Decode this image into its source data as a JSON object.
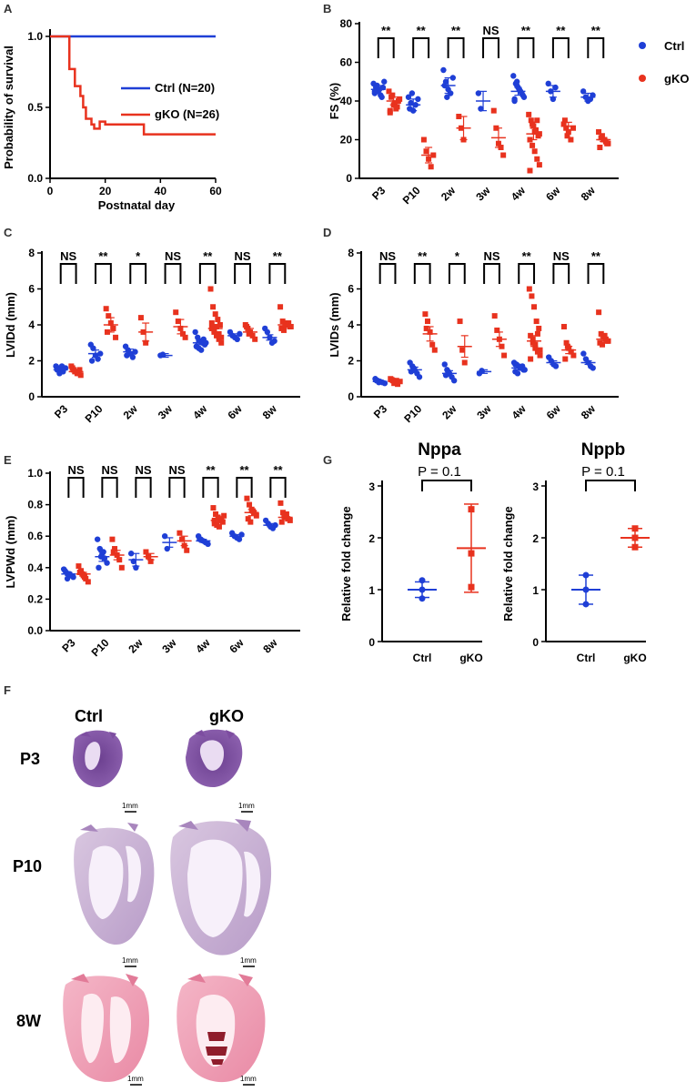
{
  "colors": {
    "ctrl": "#1f3fd6",
    "gko": "#e8321e",
    "axis": "#000000"
  },
  "chart_data": [
    {
      "panel": "A",
      "type": "line",
      "title": "",
      "xlabel": "Postnatal day",
      "ylabel": "Probability of survival",
      "xlim": [
        0,
        60
      ],
      "ylim": [
        0,
        1
      ],
      "xticks": [
        "0",
        "20",
        "40",
        "60"
      ],
      "yticks": [
        "0.0",
        "0.5",
        "1.0"
      ],
      "legend_position": "right-middle",
      "series": [
        {
          "name": "Ctrl (N=20)",
          "group": "ctrl",
          "x": [
            0,
            60
          ],
          "y": [
            1.0,
            1.0
          ]
        },
        {
          "name": "gKO (N=26)",
          "group": "gko",
          "x": [
            0,
            7,
            7,
            9,
            9,
            11,
            11,
            12,
            12,
            13,
            13,
            15,
            15,
            16,
            16,
            18,
            18,
            20,
            20,
            34,
            34,
            60
          ],
          "y": [
            1.0,
            1.0,
            0.77,
            0.77,
            0.65,
            0.65,
            0.58,
            0.58,
            0.5,
            0.5,
            0.42,
            0.42,
            0.38,
            0.38,
            0.35,
            0.35,
            0.4,
            0.4,
            0.38,
            0.38,
            0.31,
            0.31
          ]
        }
      ]
    },
    {
      "panel": "B",
      "type": "scatter",
      "ylabel": "FS (%)",
      "ylim": [
        0,
        80
      ],
      "yticks": [
        0,
        20,
        40,
        60,
        80
      ],
      "categories": [
        "P3",
        "P10",
        "2w",
        "3w",
        "4w",
        "6w",
        "8w"
      ],
      "significance": [
        "**",
        "**",
        "**",
        "NS",
        "**",
        "**",
        "**"
      ],
      "legend": [
        "Ctrl",
        "gKO"
      ],
      "series": [
        {
          "name": "Ctrl",
          "means": [
            46,
            38,
            48,
            40,
            45,
            45,
            42
          ],
          "sem": [
            2,
            3,
            4,
            5,
            2,
            3,
            2
          ],
          "points": [
            [
              49,
              47,
              45,
              43,
              47,
              44,
              48,
              46,
              42,
              50,
              45
            ],
            [
              42,
              39,
              35,
              38,
              41,
              36,
              44
            ],
            [
              56,
              50,
              46,
              44,
              52,
              48,
              42
            ],
            [
              44,
              36
            ],
            [
              53,
              49,
              47,
              45,
              43,
              41,
              48,
              46,
              44,
              42,
              40,
              50,
              46
            ],
            [
              49,
              45,
              41,
              47
            ],
            [
              45,
              42,
              40,
              41,
              43
            ]
          ]
        },
        {
          "name": "gKO",
          "means": [
            40,
            12,
            26,
            21,
            23,
            27,
            20
          ],
          "sem": [
            2,
            4,
            6,
            5,
            3,
            2,
            1
          ],
          "points": [
            [
              45,
              42,
              38,
              36,
              40,
              34,
              43,
              39,
              37,
              41,
              35
            ],
            [
              20,
              14,
              10,
              6,
              12
            ],
            [
              32,
              26,
              20
            ],
            [
              35,
              26,
              18,
              16,
              12
            ],
            [
              33,
              30,
              27,
              25,
              22,
              20,
              17,
              14,
              10,
              7,
              4,
              28,
              24,
              30,
              23
            ],
            [
              28,
              26,
              24,
              20,
              26,
              30,
              22
            ],
            [
              24,
              21,
              20,
              19,
              18,
              16,
              22,
              20,
              18
            ]
          ]
        }
      ]
    },
    {
      "panel": "C",
      "type": "scatter",
      "ylabel": "LVIDd (mm)",
      "ylim": [
        0,
        8
      ],
      "yticks": [
        0,
        2,
        4,
        6,
        8
      ],
      "categories": [
        "P3",
        "P10",
        "2w",
        "3w",
        "4w",
        "6w",
        "8w"
      ],
      "significance": [
        "NS",
        "**",
        "*",
        "NS",
        "**",
        "NS",
        "**"
      ],
      "series": [
        {
          "name": "Ctrl",
          "means": [
            1.5,
            2.4,
            2.5,
            2.3,
            3.0,
            3.4,
            3.3
          ],
          "sem": [
            0.1,
            0.2,
            0.15,
            0.1,
            0.1,
            0.1,
            0.15
          ],
          "points": [
            [
              1.7,
              1.6,
              1.5,
              1.4,
              1.6,
              1.5,
              1.3,
              1.7
            ],
            [
              2.9,
              2.7,
              2.3,
              2.1,
              2.4,
              2.0
            ],
            [
              2.8,
              2.6,
              2.4,
              2.2,
              2.5,
              2.3
            ],
            [
              2.3,
              2.35
            ],
            [
              3.6,
              3.3,
              3.1,
              3.0,
              2.9,
              2.8,
              2.7,
              2.6,
              3.2,
              3.0,
              2.8,
              3.1
            ],
            [
              3.6,
              3.4,
              3.3,
              3.2,
              3.5
            ],
            [
              3.8,
              3.6,
              3.3,
              3.0,
              3.1
            ]
          ]
        },
        {
          "name": "gKO",
          "means": [
            1.4,
            4.0,
            3.6,
            3.9,
            3.8,
            3.6,
            4.0
          ],
          "sem": [
            0.1,
            0.4,
            0.5,
            0.4,
            0.2,
            0.2,
            0.1
          ],
          "points": [
            [
              1.7,
              1.5,
              1.4,
              1.3,
              1.2,
              1.6,
              1.4,
              1.3,
              1.5
            ],
            [
              4.9,
              4.5,
              4.1,
              3.8,
              3.3,
              3.6
            ],
            [
              4.4,
              3.6,
              3.0
            ],
            [
              4.7,
              4.2,
              3.8,
              3.5,
              3.3
            ],
            [
              6.0,
              5.0,
              4.6,
              4.3,
              4.0,
              3.8,
              3.6,
              3.4,
              3.2,
              3.0,
              4.1,
              3.7,
              3.9,
              3.5,
              3.3
            ],
            [
              4.0,
              3.8,
              3.6,
              3.4,
              3.2,
              3.9,
              3.5
            ],
            [
              5.0,
              4.2,
              4.1,
              4.0,
              3.9,
              3.8,
              3.7,
              4.0,
              4.1,
              3.9
            ]
          ]
        }
      ]
    },
    {
      "panel": "D",
      "type": "scatter",
      "ylabel": "LVIDs (mm)",
      "ylim": [
        0,
        8
      ],
      "yticks": [
        0,
        2,
        4,
        6,
        8
      ],
      "categories": [
        "P3",
        "P10",
        "2w",
        "3w",
        "4w",
        "6w",
        "8w"
      ],
      "significance": [
        "NS",
        "**",
        "*",
        "NS",
        "**",
        "NS",
        "**"
      ],
      "series": [
        {
          "name": "Ctrl",
          "means": [
            0.85,
            1.5,
            1.3,
            1.4,
            1.6,
            1.9,
            1.9
          ],
          "sem": [
            0.05,
            0.15,
            0.15,
            0.1,
            0.1,
            0.1,
            0.1
          ],
          "points": [
            [
              1.0,
              0.9,
              0.85,
              0.8,
              0.75,
              0.9,
              0.8
            ],
            [
              1.9,
              1.7,
              1.5,
              1.3,
              1.1,
              1.4,
              1.6
            ],
            [
              1.8,
              1.5,
              1.3,
              1.1,
              0.9,
              1.2,
              1.4
            ],
            [
              1.3,
              1.45
            ],
            [
              1.9,
              1.8,
              1.7,
              1.6,
              1.5,
              1.4,
              1.3,
              1.6,
              1.7,
              1.5,
              1.8
            ],
            [
              2.2,
              2.0,
              1.8,
              1.7
            ],
            [
              2.4,
              2.1,
              1.9,
              1.7,
              1.6
            ]
          ]
        },
        {
          "name": "gKO",
          "means": [
            0.85,
            3.5,
            2.8,
            3.2,
            3.1,
            2.6,
            3.2
          ],
          "sem": [
            0.05,
            0.4,
            0.6,
            0.4,
            0.3,
            0.2,
            0.1
          ],
          "points": [
            [
              1.0,
              0.9,
              0.8,
              0.7,
              0.85,
              0.95,
              0.75,
              0.9
            ],
            [
              4.6,
              4.2,
              3.6,
              2.9,
              2.6,
              3.8
            ],
            [
              4.2,
              2.6,
              1.9
            ],
            [
              4.5,
              3.7,
              3.2,
              2.8,
              2.3
            ],
            [
              6.0,
              5.6,
              5.0,
              4.2,
              3.8,
              3.4,
              3.0,
              2.7,
              2.5,
              2.3,
              2.1,
              3.2,
              2.9,
              3.5,
              2.6
            ],
            [
              3.9,
              3.0,
              2.7,
              2.5,
              2.3,
              2.1,
              2.8
            ],
            [
              4.7,
              3.5,
              3.3,
              3.2,
              3.1,
              3.0,
              2.9,
              3.4,
              3.1
            ]
          ]
        }
      ]
    },
    {
      "panel": "E",
      "type": "scatter",
      "ylabel": "LVPWd (mm)",
      "ylim": [
        0,
        1.0
      ],
      "yticks": [
        "0.0",
        "0.2",
        "0.4",
        "0.6",
        "0.8",
        "1.0"
      ],
      "categories": [
        "P3",
        "P10",
        "2w",
        "3w",
        "4w",
        "6w",
        "8w"
      ],
      "significance": [
        "NS",
        "NS",
        "NS",
        "NS",
        "**",
        "**",
        "**"
      ],
      "series": [
        {
          "name": "Ctrl",
          "means": [
            0.36,
            0.47,
            0.45,
            0.56,
            0.57,
            0.6,
            0.67
          ],
          "sem": [
            0.01,
            0.03,
            0.04,
            0.03,
            0.01,
            0.01,
            0.01
          ],
          "points": [
            [
              0.39,
              0.37,
              0.36,
              0.35,
              0.34,
              0.38,
              0.33,
              0.36
            ],
            [
              0.58,
              0.52,
              0.49,
              0.46,
              0.43,
              0.4,
              0.47,
              0.5
            ],
            [
              0.49,
              0.44,
              0.4
            ],
            [
              0.6,
              0.52
            ],
            [
              0.6,
              0.58,
              0.57,
              0.56,
              0.55,
              0.58
            ],
            [
              0.62,
              0.6,
              0.59,
              0.58,
              0.61
            ],
            [
              0.7,
              0.68,
              0.66,
              0.65,
              0.67
            ]
          ]
        },
        {
          "name": "gKO",
          "means": [
            0.36,
            0.48,
            0.47,
            0.57,
            0.7,
            0.75,
            0.72
          ],
          "sem": [
            0.01,
            0.03,
            0.02,
            0.03,
            0.01,
            0.02,
            0.01
          ],
          "points": [
            [
              0.41,
              0.38,
              0.35,
              0.33,
              0.31,
              0.37,
              0.36,
              0.34
            ],
            [
              0.58,
              0.52,
              0.48,
              0.45,
              0.4,
              0.5
            ],
            [
              0.5,
              0.47,
              0.44
            ],
            [
              0.62,
              0.58,
              0.54,
              0.51
            ],
            [
              0.78,
              0.74,
              0.72,
              0.7,
              0.69,
              0.68,
              0.67,
              0.66,
              0.71,
              0.73,
              0.7
            ],
            [
              0.84,
              0.8,
              0.77,
              0.75,
              0.73,
              0.71,
              0.69,
              0.76
            ],
            [
              0.81,
              0.75,
              0.72,
              0.71,
              0.7,
              0.69,
              0.73,
              0.74
            ]
          ]
        }
      ]
    },
    {
      "panel": "G",
      "type": "scatter",
      "title": "Nppa",
      "ylabel": "Relative fold change",
      "ylim": [
        0,
        3
      ],
      "yticks": [
        0,
        1,
        2,
        3
      ],
      "categories": [
        "Ctrl",
        "gKO"
      ],
      "pvalue": "P = 0.1",
      "series": [
        {
          "name": "Ctrl",
          "mean": 1.0,
          "sd": [
            0.85,
            1.15
          ],
          "points": [
            1.18,
            1.0,
            0.83
          ]
        },
        {
          "name": "gKO",
          "mean": 1.8,
          "sd": [
            0.95,
            2.65
          ],
          "points": [
            2.55,
            1.7,
            1.05
          ]
        }
      ]
    },
    {
      "panel": "G2",
      "type": "scatter",
      "title": "Nppb",
      "ylabel": "Relative fold change",
      "ylim": [
        0,
        3
      ],
      "yticks": [
        0,
        1,
        2,
        3
      ],
      "categories": [
        "Ctrl",
        "gKO"
      ],
      "pvalue": "P = 0.1",
      "series": [
        {
          "name": "Ctrl",
          "mean": 1.0,
          "sd": [
            0.72,
            1.28
          ],
          "points": [
            1.28,
            1.0,
            0.72
          ]
        },
        {
          "name": "gKO",
          "mean": 2.0,
          "sd": [
            1.82,
            2.18
          ],
          "points": [
            2.18,
            2.0,
            1.82
          ]
        }
      ]
    }
  ],
  "panel_f": {
    "letter": "F",
    "columns": [
      "Ctrl",
      "gKO"
    ],
    "rows": [
      "P3",
      "P10",
      "8W"
    ],
    "scale_bar": "1mm"
  }
}
